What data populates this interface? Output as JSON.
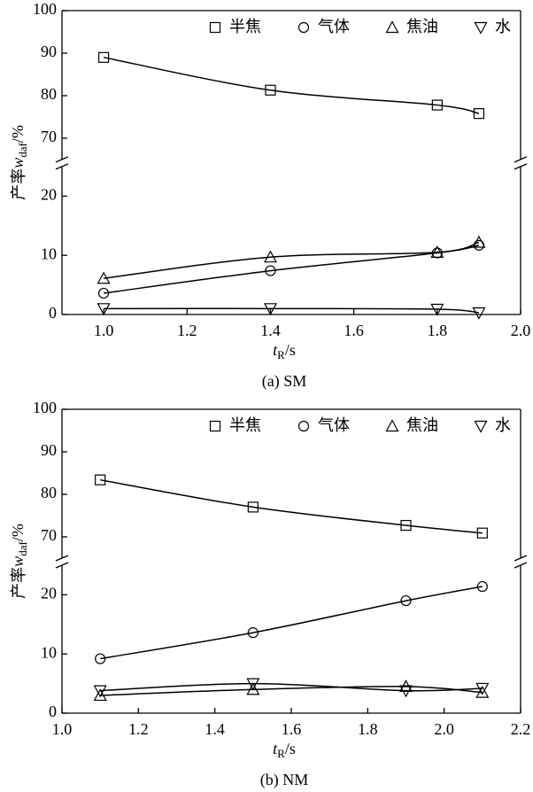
{
  "chart_data": [
    {
      "type": "line",
      "x": [
        1.0,
        1.4,
        1.8,
        1.9
      ],
      "xlim": [
        0.9,
        2.0
      ],
      "xticks": [
        {
          "value": 1.0,
          "label": "1.0"
        },
        1.2,
        1.4,
        1.6,
        1.8,
        {
          "value": 2.0,
          "label": "2.0"
        }
      ],
      "ylim_upper": [
        65,
        100
      ],
      "yticks_upper": [
        70,
        80,
        90,
        100
      ],
      "ylim_lower": [
        0,
        25
      ],
      "yticks_lower": [
        0,
        10,
        20
      ],
      "ylabel": {
        "text": "产率",
        "var": "w",
        "sub": "daf",
        "unit": "/%"
      },
      "xlabel": {
        "var": "t",
        "sub": "R",
        "unit": "/s"
      },
      "caption": "(a) SM",
      "series": [
        {
          "name": "半焦",
          "marker": "square",
          "color": "#000000",
          "values": [
            89.0,
            81.3,
            77.8,
            75.8
          ]
        },
        {
          "name": "气体",
          "marker": "circle",
          "color": "#000000",
          "values": [
            3.6,
            7.4,
            10.4,
            11.7
          ]
        },
        {
          "name": "焦油",
          "marker": "triangle-up",
          "color": "#000000",
          "values": [
            6.1,
            9.7,
            10.5,
            12.2
          ]
        },
        {
          "name": "水",
          "marker": "triangle-down",
          "color": "#000000",
          "values": [
            1.0,
            1.0,
            0.9,
            0.3
          ]
        }
      ]
    },
    {
      "type": "line",
      "x": [
        1.1,
        1.5,
        1.9,
        2.1
      ],
      "xlim": [
        1.0,
        2.2
      ],
      "xticks": [
        {
          "value": 1.0,
          "label": "1.0"
        },
        1.2,
        1.4,
        1.6,
        1.8,
        {
          "value": 2.0,
          "label": "2.0"
        },
        2.2
      ],
      "ylim_upper": [
        65,
        100
      ],
      "yticks_upper": [
        70,
        80,
        90,
        100
      ],
      "ylim_lower": [
        0,
        25
      ],
      "yticks_lower": [
        0,
        10,
        20
      ],
      "ylabel": {
        "text": "产率",
        "var": "w",
        "sub": "daf",
        "unit": "/%"
      },
      "xlabel": {
        "var": "t",
        "sub": "R",
        "unit": "/s"
      },
      "caption": "(b) NM",
      "series": [
        {
          "name": "半焦",
          "marker": "square",
          "color": "#000000",
          "values": [
            83.4,
            77.0,
            72.7,
            70.9
          ]
        },
        {
          "name": "气体",
          "marker": "circle",
          "color": "#000000",
          "values": [
            9.2,
            13.6,
            19.0,
            21.4
          ]
        },
        {
          "name": "焦油",
          "marker": "triangle-up",
          "color": "#000000",
          "values": [
            3.0,
            4.0,
            4.5,
            3.5
          ]
        },
        {
          "name": "水",
          "marker": "triangle-down",
          "color": "#000000",
          "values": [
            3.8,
            5.0,
            3.8,
            4.2
          ]
        }
      ]
    }
  ]
}
